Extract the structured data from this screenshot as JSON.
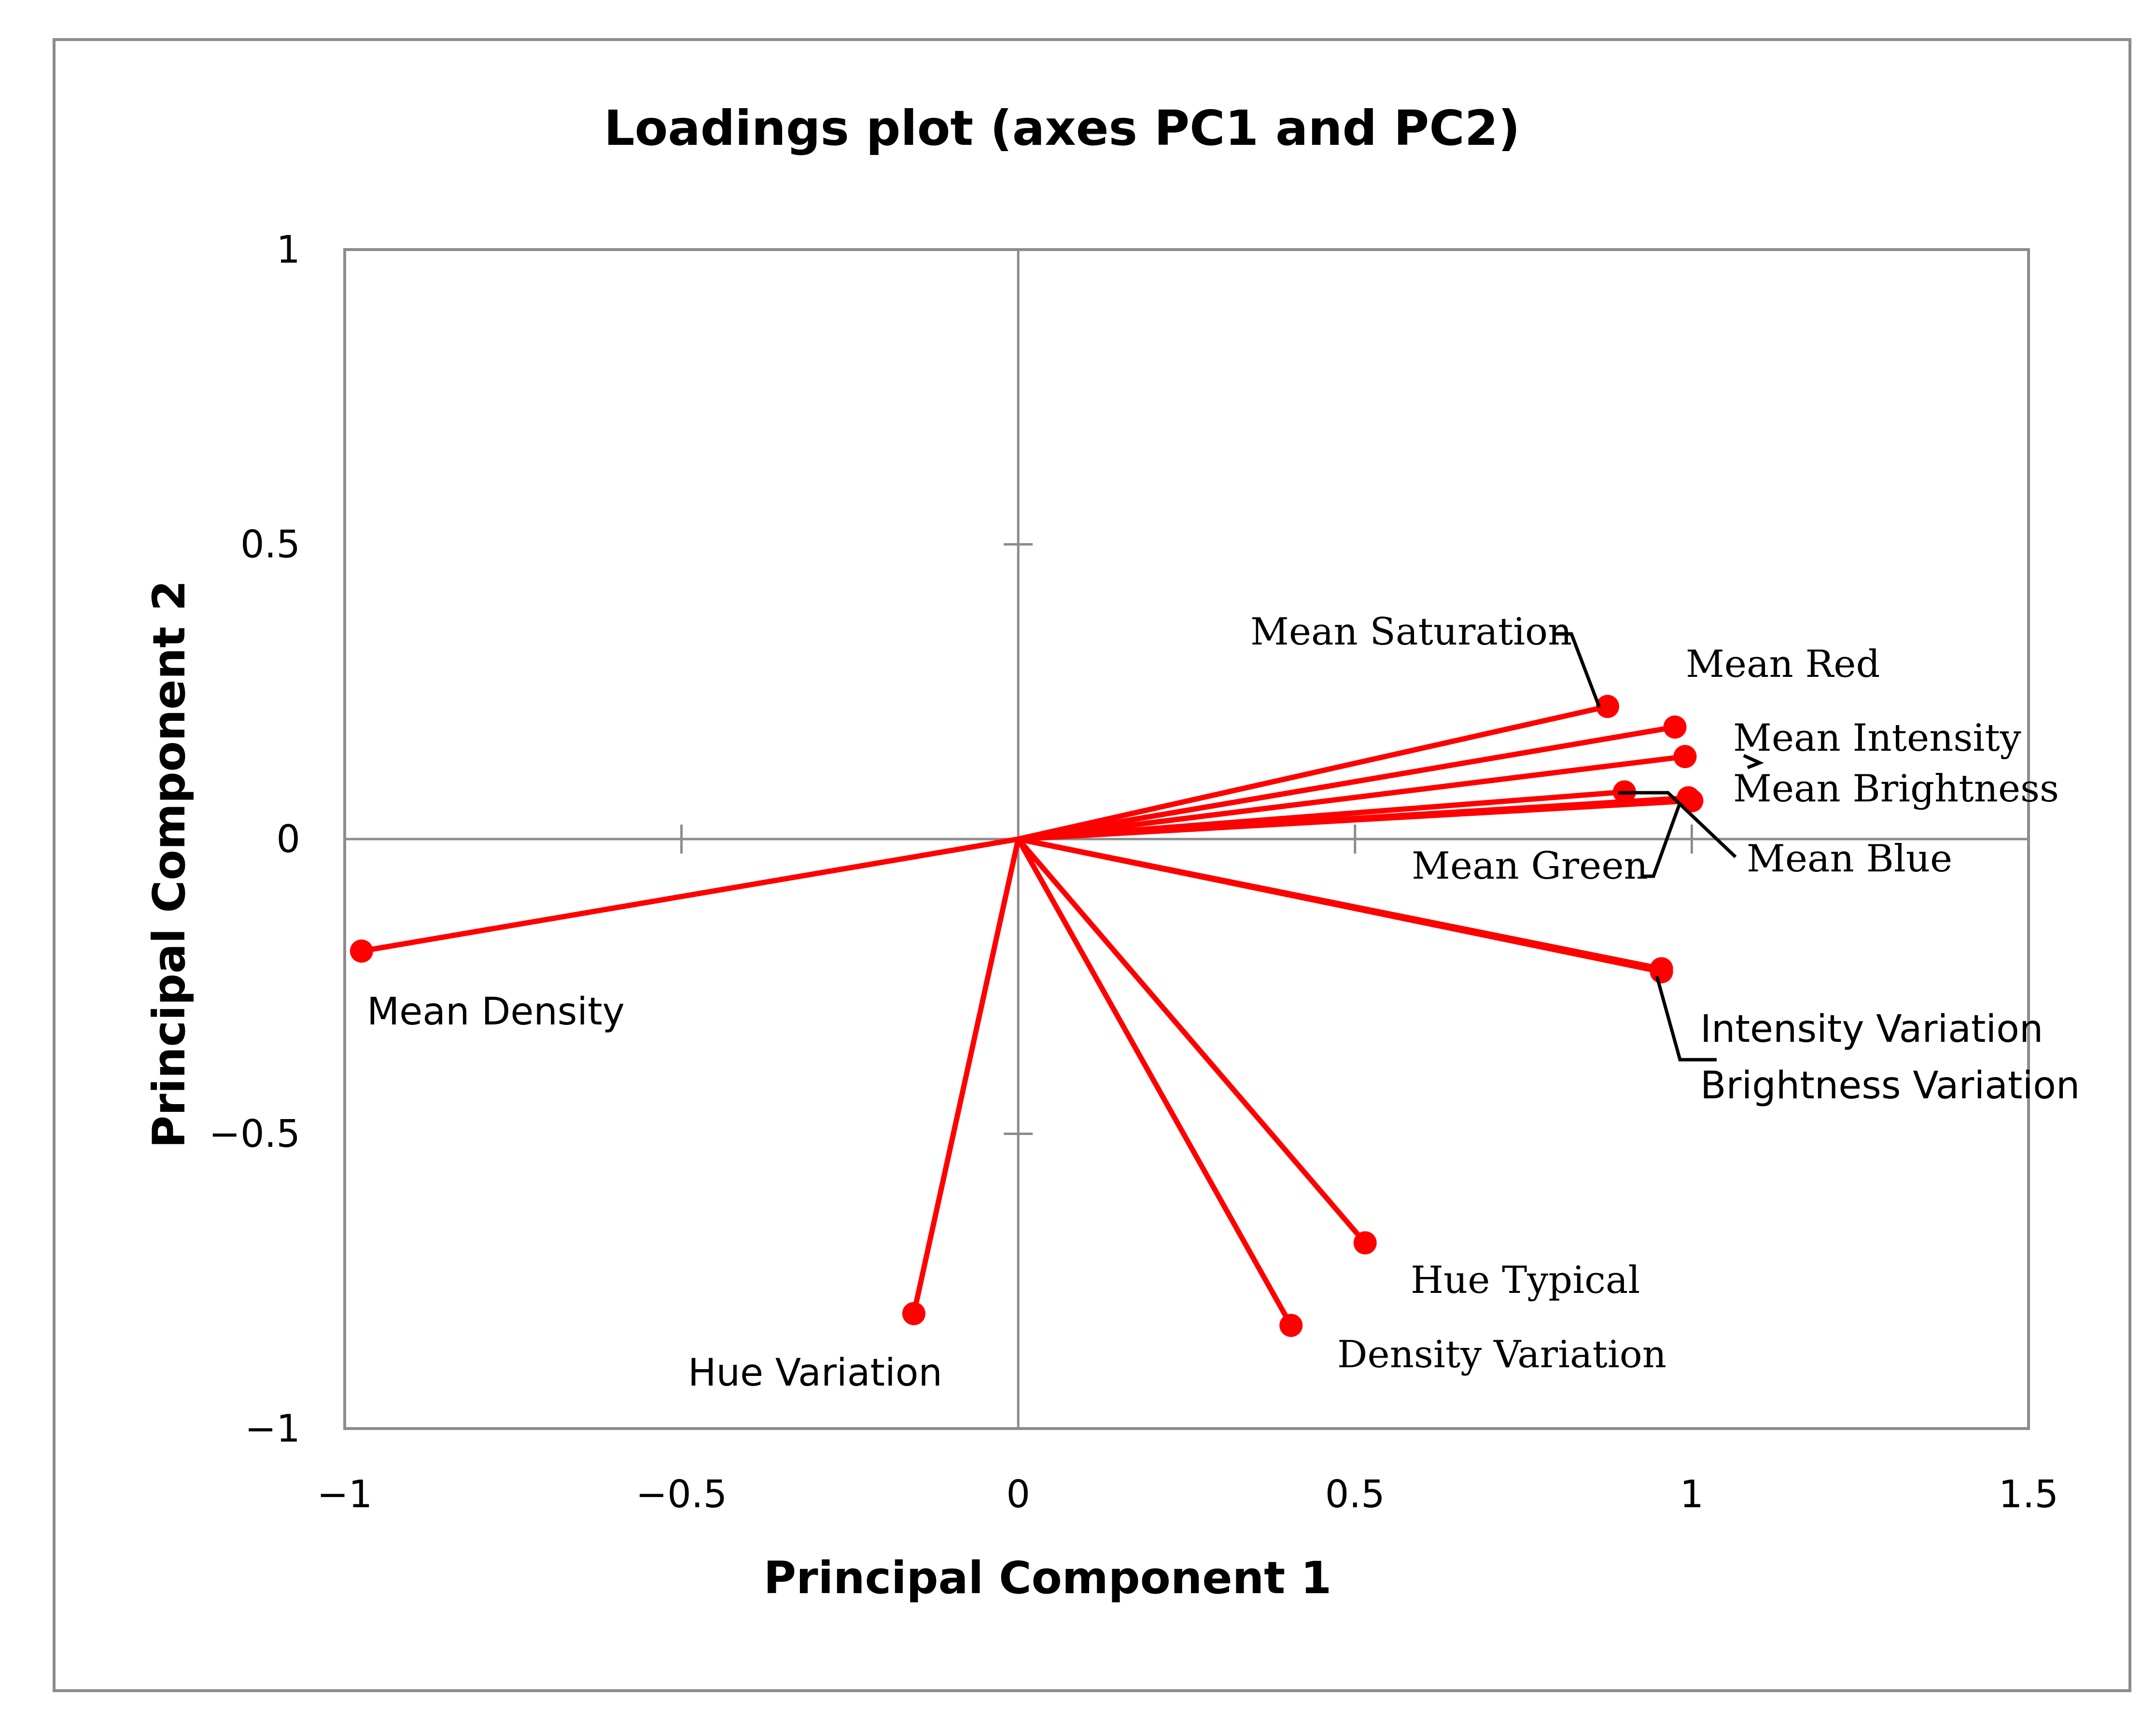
{
  "chart_data": {
    "type": "line",
    "title": "Loadings plot (axes PC1 and PC2)",
    "xlabel": "Principal Component 1",
    "ylabel": "Principal Component 2",
    "xlim": [
      -1,
      1.5
    ],
    "ylim": [
      -1,
      1
    ],
    "x_ticks": [
      -1,
      -0.5,
      0,
      0.5,
      1,
      1.5
    ],
    "y_ticks": [
      -1,
      -0.5,
      0,
      0.5,
      1
    ],
    "x_tick_labels": [
      "−1",
      "−0.5",
      "0",
      "0.5",
      "1",
      "1.5"
    ],
    "y_tick_labels": [
      "−1",
      "−0.5",
      "0",
      "0.5",
      "1"
    ],
    "grid": false,
    "origin": [
      0,
      0
    ],
    "line_color": "#ff0000",
    "axis_color": "#8c8c8c",
    "series": [
      {
        "name": "Mean Saturation",
        "x": 0.875,
        "y": 0.225
      },
      {
        "name": "Mean Red",
        "x": 0.975,
        "y": 0.19
      },
      {
        "name": "Mean Intensity",
        "x": 0.99,
        "y": 0.14
      },
      {
        "name": "Mean Brightness",
        "x": 0.995,
        "y": 0.07
      },
      {
        "name": "Mean Green",
        "x": 0.9,
        "y": 0.08
      },
      {
        "name": "Mean Blue",
        "x": 1.0,
        "y": 0.065
      },
      {
        "name": "Intensity Variation",
        "x": 0.955,
        "y": -0.22
      },
      {
        "name": "Brightness Variation",
        "x": 0.955,
        "y": -0.225
      },
      {
        "name": "Mean Density",
        "x": -0.975,
        "y": -0.19
      },
      {
        "name": "Hue Variation",
        "x": -0.155,
        "y": -0.805
      },
      {
        "name": "Hue Typical",
        "x": 0.515,
        "y": -0.685
      },
      {
        "name": "Density Variation",
        "x": 0.405,
        "y": -0.825
      }
    ]
  }
}
